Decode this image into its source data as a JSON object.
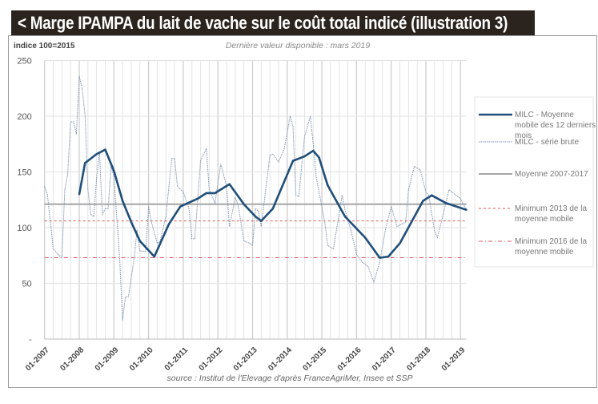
{
  "title": "< Marge IPAMPA du lait de vache sur le coût total indicé (illustration 3)",
  "chart_data": {
    "type": "line",
    "title": "Marge IPAMPA du lait de vache sur le coût total indicé (illustration 3)",
    "ylabel": "indice 100=2015",
    "subtitle": "Dernière valeur disponible : mars 2019",
    "source": "source : Institut de l'Elevage d'après FranceAgriMer, Insee et SSP",
    "ylim": [
      0,
      250
    ],
    "yticks": [
      "250",
      "200",
      "150",
      "100",
      "50",
      "-"
    ],
    "xlim": [
      "2007-01",
      "2019-03"
    ],
    "xticks": [
      "01-2007",
      "01-2008",
      "01-2009",
      "01-2010",
      "01-2011",
      "01-2012",
      "01-2013",
      "01-2014",
      "01-2015",
      "01-2016",
      "01-2017",
      "01-2018",
      "01-2019"
    ],
    "grid": true,
    "legend_position": "right",
    "series": [
      {
        "name": "MILC - Moyenne mobile des 12 derniers mois",
        "color": "#1f4e79",
        "style": "solid-thick",
        "points": [
          [
            "2008-01",
            130
          ],
          [
            "2008-03",
            158
          ],
          [
            "2008-07",
            166
          ],
          [
            "2008-10",
            170
          ],
          [
            "2009-01",
            151
          ],
          [
            "2009-04",
            124
          ],
          [
            "2009-07",
            105
          ],
          [
            "2009-10",
            88
          ],
          [
            "2010-03",
            74
          ],
          [
            "2010-08",
            103
          ],
          [
            "2010-12",
            119
          ],
          [
            "2011-06",
            126
          ],
          [
            "2011-09",
            131
          ],
          [
            "2011-12",
            131
          ],
          [
            "2012-05",
            139
          ],
          [
            "2012-10",
            121
          ],
          [
            "2013-02",
            110
          ],
          [
            "2013-04",
            106
          ],
          [
            "2013-08",
            117
          ],
          [
            "2014-03",
            160
          ],
          [
            "2014-07",
            164
          ],
          [
            "2014-10",
            169
          ],
          [
            "2014-12",
            163
          ],
          [
            "2015-03",
            138
          ],
          [
            "2015-09",
            110
          ],
          [
            "2016-04",
            91
          ],
          [
            "2016-09",
            73
          ],
          [
            "2016-12",
            74
          ],
          [
            "2017-04",
            86
          ],
          [
            "2017-12",
            124
          ],
          [
            "2018-03",
            129
          ],
          [
            "2018-08",
            122
          ],
          [
            "2019-03",
            116
          ]
        ]
      },
      {
        "name": "MILC - série brute",
        "color": "#7f93b0",
        "style": "dotted",
        "points": [
          [
            "2007-01",
            137
          ],
          [
            "2007-02",
            129
          ],
          [
            "2007-04",
            81
          ],
          [
            "2007-06",
            75
          ],
          [
            "2007-07",
            74
          ],
          [
            "2007-08",
            134
          ],
          [
            "2007-09",
            148
          ],
          [
            "2007-10",
            195
          ],
          [
            "2007-11",
            195
          ],
          [
            "2007-12",
            184
          ],
          [
            "2008-01",
            236
          ],
          [
            "2008-02",
            225
          ],
          [
            "2008-03",
            201
          ],
          [
            "2008-04",
            134
          ],
          [
            "2008-05",
            112
          ],
          [
            "2008-06",
            110
          ],
          [
            "2008-07",
            144
          ],
          [
            "2008-08",
            168
          ],
          [
            "2008-09",
            112
          ],
          [
            "2008-10",
            117
          ],
          [
            "2008-11",
            117
          ],
          [
            "2008-12",
            155
          ],
          [
            "2009-01",
            146
          ],
          [
            "2009-03",
            72
          ],
          [
            "2009-04",
            17
          ],
          [
            "2009-05",
            38
          ],
          [
            "2009-06",
            38
          ],
          [
            "2009-08",
            72
          ],
          [
            "2009-09",
            98
          ],
          [
            "2009-10",
            79
          ],
          [
            "2009-12",
            79
          ],
          [
            "2010-01",
            119
          ],
          [
            "2010-02",
            105
          ],
          [
            "2010-04",
            86
          ],
          [
            "2010-05",
            88
          ],
          [
            "2010-07",
            110
          ],
          [
            "2010-09",
            162
          ],
          [
            "2010-10",
            162
          ],
          [
            "2010-11",
            137
          ],
          [
            "2011-01",
            132
          ],
          [
            "2011-03",
            117
          ],
          [
            "2011-04",
            90
          ],
          [
            "2011-05",
            90
          ],
          [
            "2011-07",
            160
          ],
          [
            "2011-09",
            171
          ],
          [
            "2011-10",
            134
          ],
          [
            "2011-12",
            122
          ],
          [
            "2012-02",
            157
          ],
          [
            "2012-04",
            137
          ],
          [
            "2012-05",
            101
          ],
          [
            "2012-07",
            127
          ],
          [
            "2012-08",
            120
          ],
          [
            "2012-10",
            88
          ],
          [
            "2012-12",
            86
          ],
          [
            "2013-01",
            84
          ],
          [
            "2013-02",
            117
          ],
          [
            "2013-03",
            115
          ],
          [
            "2013-04",
            101
          ],
          [
            "2013-07",
            165
          ],
          [
            "2013-08",
            166
          ],
          [
            "2013-10",
            159
          ],
          [
            "2013-12",
            171
          ],
          [
            "2014-02",
            200
          ],
          [
            "2014-03",
            191
          ],
          [
            "2014-04",
            129
          ],
          [
            "2014-05",
            128
          ],
          [
            "2014-07",
            182
          ],
          [
            "2014-09",
            200
          ],
          [
            "2014-10",
            175
          ],
          [
            "2014-11",
            146
          ],
          [
            "2015-02",
            105
          ],
          [
            "2015-03",
            84
          ],
          [
            "2015-05",
            81
          ],
          [
            "2015-08",
            129
          ],
          [
            "2015-09",
            116
          ],
          [
            "2015-11",
            98
          ],
          [
            "2016-01",
            76
          ],
          [
            "2016-03",
            69
          ],
          [
            "2016-05",
            65
          ],
          [
            "2016-07",
            51
          ],
          [
            "2016-09",
            69
          ],
          [
            "2016-11",
            98
          ],
          [
            "2017-01",
            119
          ],
          [
            "2017-03",
            101
          ],
          [
            "2017-06",
            105
          ],
          [
            "2017-07",
            134
          ],
          [
            "2017-09",
            155
          ],
          [
            "2017-11",
            152
          ],
          [
            "2018-01",
            132
          ],
          [
            "2018-02",
            129
          ],
          [
            "2018-04",
            97
          ],
          [
            "2018-05",
            91
          ],
          [
            "2018-07",
            112
          ],
          [
            "2018-09",
            134
          ],
          [
            "2018-11",
            130
          ],
          [
            "2019-01",
            126
          ],
          [
            "2019-03",
            116
          ]
        ]
      },
      {
        "name": "Moyenne 2007-2017",
        "color": "#a6a6a6",
        "style": "solid",
        "value": 121
      },
      {
        "name": "Minimum 2013 de la moyenne mobile",
        "color": "#e05a5a",
        "style": "dashed",
        "value": 106
      },
      {
        "name": "Minimum 2016 de la moyenne mobile",
        "color": "#e05a5a",
        "style": "dash-dot",
        "value": 73
      }
    ]
  }
}
